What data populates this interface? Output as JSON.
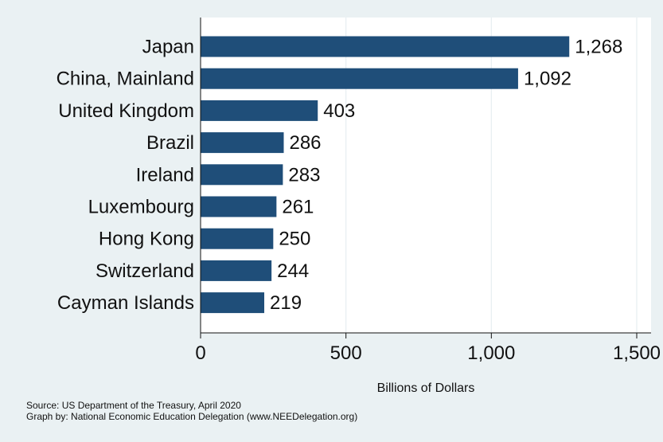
{
  "chart_data": {
    "type": "bar",
    "orientation": "horizontal",
    "categories": [
      "Japan",
      "China, Mainland",
      "United Kingdom",
      "Brazil",
      "Ireland",
      "Luxembourg",
      "Hong Kong",
      "Switzerland",
      "Cayman Islands"
    ],
    "values": [
      1268,
      1092,
      403,
      286,
      283,
      261,
      250,
      244,
      219
    ],
    "value_labels": [
      "1,268",
      "1,092",
      "403",
      "286",
      "283",
      "261",
      "250",
      "244",
      "219"
    ],
    "title": "",
    "xlabel": "Billions of Dollars",
    "ylabel": "",
    "xlim": [
      0,
      1500
    ],
    "xticks": [
      0,
      500,
      1000,
      1500
    ],
    "xtick_labels": [
      "0",
      "500",
      "1,000",
      "1,500"
    ],
    "grid": true,
    "bar_color": "#1f4e79"
  },
  "notes": {
    "source": "Source: US Department of the Treasury, April 2020",
    "credit": "Graph by: National Economic Education Delegation (www.NEEDelegation.org)"
  }
}
